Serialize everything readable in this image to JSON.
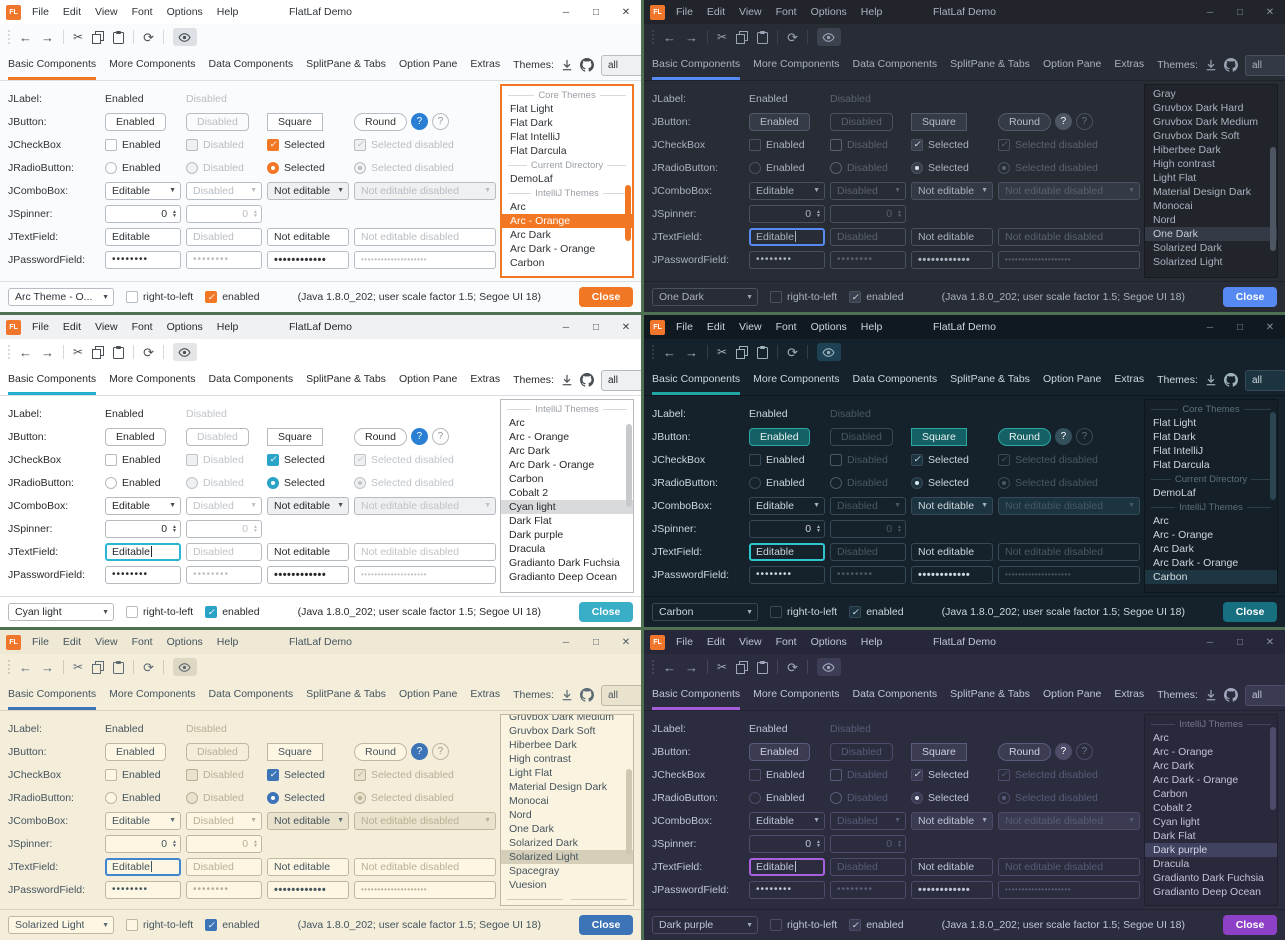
{
  "desktop_color": "#4f7152",
  "shared": {
    "titlebar": {
      "title": "FlatLaf Demo",
      "menus": [
        "File",
        "Edit",
        "View",
        "Font",
        "Options",
        "Help"
      ]
    },
    "toolbar_icons": [
      "back",
      "forward",
      "cut",
      "copy",
      "paste",
      "refresh",
      "show-eye"
    ],
    "tabs": [
      "Basic Components",
      "More Components",
      "Data Components",
      "SplitPane & Tabs",
      "Option Pane",
      "Extras"
    ],
    "themes_label": "Themes:",
    "themes_header_icons": [
      "download",
      "github"
    ],
    "themes_filter_value": "all",
    "form": {
      "rows": [
        {
          "label": "JLabel:",
          "cells": [
            "Enabled",
            "Disabled"
          ]
        },
        {
          "label": "JButton:",
          "cells": [
            "Enabled",
            "Disabled",
            "Square",
            "Round",
            "?",
            "?"
          ]
        },
        {
          "label": "JCheckBox",
          "cells": [
            "Enabled",
            "Disabled",
            "Selected",
            "Selected disabled"
          ]
        },
        {
          "label": "JRadioButton:",
          "cells": [
            "Enabled",
            "Disabled",
            "Selected",
            "Selected disabled"
          ]
        },
        {
          "label": "JComboBox:",
          "cells": [
            "Editable",
            "Disabled",
            "Not editable",
            "Not editable disabled"
          ]
        },
        {
          "label": "JSpinner:",
          "cells": [
            "0",
            "0"
          ]
        },
        {
          "label": "JTextField:",
          "cells": [
            "Editable",
            "Disabled",
            "Not editable",
            "Not editable disabled"
          ]
        },
        {
          "label": "JPasswordField:",
          "cells": [
            "••••••••",
            "••••••••",
            "••••••••••••",
            "••••••••••••••••••••"
          ]
        }
      ]
    },
    "statusbar": {
      "rtl_label": "right-to-left",
      "enabled_label": "enabled",
      "java_info": "(Java 1.8.0_202;  user scale factor 1.5; Segoe UI 18)",
      "close_label": "Close"
    }
  },
  "windows": [
    {
      "id": "arc-orange",
      "theme_name": "Arc - Orange",
      "dark": false,
      "accent": "#f27724",
      "combo_value": "Arc Theme - O...",
      "textfield_focused": false,
      "caret": false,
      "list_focused": true,
      "clip_top": false,
      "theme_list": [
        {
          "type": "sep",
          "label": "Core Themes"
        },
        {
          "type": "item",
          "label": "Flat Light"
        },
        {
          "type": "item",
          "label": "Flat Dark"
        },
        {
          "type": "item",
          "label": "Flat IntelliJ"
        },
        {
          "type": "item",
          "label": "Flat Darcula"
        },
        {
          "type": "sep",
          "label": "Current Directory"
        },
        {
          "type": "item",
          "label": "DemoLaf"
        },
        {
          "type": "sep",
          "label": "IntelliJ Themes"
        },
        {
          "type": "item",
          "label": "Arc"
        },
        {
          "type": "item",
          "label": "Arc - Orange",
          "selected": true
        },
        {
          "type": "item",
          "label": "Arc Dark"
        },
        {
          "type": "item",
          "label": "Arc Dark - Orange"
        },
        {
          "type": "item",
          "label": "Carbon"
        }
      ]
    },
    {
      "id": "one-dark",
      "theme_name": "One Dark",
      "dark": true,
      "accent": "#568af2",
      "combo_value": "One Dark",
      "textfield_focused": true,
      "caret": true,
      "list_focused": false,
      "clip_top": false,
      "theme_list": [
        {
          "type": "item",
          "label": "Gray"
        },
        {
          "type": "item",
          "label": "Gruvbox Dark Hard"
        },
        {
          "type": "item",
          "label": "Gruvbox Dark Medium"
        },
        {
          "type": "item",
          "label": "Gruvbox Dark Soft"
        },
        {
          "type": "item",
          "label": "Hiberbee Dark"
        },
        {
          "type": "item",
          "label": "High contrast"
        },
        {
          "type": "item",
          "label": "Light Flat"
        },
        {
          "type": "item",
          "label": "Material Design Dark"
        },
        {
          "type": "item",
          "label": "Monocai"
        },
        {
          "type": "item",
          "label": "Nord"
        },
        {
          "type": "item",
          "label": "One Dark",
          "selected": true
        },
        {
          "type": "item",
          "label": "Solarized Dark"
        },
        {
          "type": "item",
          "label": "Solarized Light"
        }
      ]
    },
    {
      "id": "cyan-light",
      "theme_name": "Cyan light",
      "dark": false,
      "accent": "#25aecb",
      "combo_value": "Cyan light",
      "textfield_focused": true,
      "caret": true,
      "list_focused": false,
      "clip_top": false,
      "theme_list": [
        {
          "type": "sep",
          "label": "IntelliJ Themes"
        },
        {
          "type": "item",
          "label": "Arc"
        },
        {
          "type": "item",
          "label": "Arc - Orange"
        },
        {
          "type": "item",
          "label": "Arc Dark"
        },
        {
          "type": "item",
          "label": "Arc Dark - Orange"
        },
        {
          "type": "item",
          "label": "Carbon"
        },
        {
          "type": "item",
          "label": "Cobalt 2"
        },
        {
          "type": "item",
          "label": "Cyan light",
          "selected": true
        },
        {
          "type": "item",
          "label": "Dark Flat"
        },
        {
          "type": "item",
          "label": "Dark purple"
        },
        {
          "type": "item",
          "label": "Dracula"
        },
        {
          "type": "item",
          "label": "Gradianto Dark Fuchsia"
        },
        {
          "type": "item",
          "label": "Gradianto Deep Ocean"
        }
      ]
    },
    {
      "id": "carbon",
      "theme_name": "Carbon",
      "dark": true,
      "accent": "#1fa8a3",
      "combo_value": "Carbon",
      "textfield_focused": true,
      "caret": false,
      "list_focused": false,
      "clip_top": false,
      "theme_list": [
        {
          "type": "sep",
          "label": "Core Themes"
        },
        {
          "type": "item",
          "label": "Flat Light"
        },
        {
          "type": "item",
          "label": "Flat Dark"
        },
        {
          "type": "item",
          "label": "Flat IntelliJ"
        },
        {
          "type": "item",
          "label": "Flat Darcula"
        },
        {
          "type": "sep",
          "label": "Current Directory"
        },
        {
          "type": "item",
          "label": "DemoLaf"
        },
        {
          "type": "sep",
          "label": "IntelliJ Themes"
        },
        {
          "type": "item",
          "label": "Arc"
        },
        {
          "type": "item",
          "label": "Arc - Orange"
        },
        {
          "type": "item",
          "label": "Arc Dark"
        },
        {
          "type": "item",
          "label": "Arc Dark - Orange"
        },
        {
          "type": "item",
          "label": "Carbon",
          "selected": true
        }
      ]
    },
    {
      "id": "solarized-light",
      "theme_name": "Solarized Light",
      "dark": false,
      "accent": "#3d74b8",
      "combo_value": "Solarized Light",
      "textfield_focused": true,
      "caret": true,
      "list_focused": false,
      "clip_top": true,
      "theme_list": [
        {
          "type": "item",
          "label": "Gruvbox Dark Medium"
        },
        {
          "type": "item",
          "label": "Gruvbox Dark Soft"
        },
        {
          "type": "item",
          "label": "Hiberbee Dark"
        },
        {
          "type": "item",
          "label": "High contrast"
        },
        {
          "type": "item",
          "label": "Light Flat"
        },
        {
          "type": "item",
          "label": "Material Design Dark"
        },
        {
          "type": "item",
          "label": "Monocai"
        },
        {
          "type": "item",
          "label": "Nord"
        },
        {
          "type": "item",
          "label": "One Dark"
        },
        {
          "type": "item",
          "label": "Solarized Dark"
        },
        {
          "type": "item",
          "label": "Solarized Light",
          "selected": true
        },
        {
          "type": "item",
          "label": "Spacegray"
        },
        {
          "type": "item",
          "label": "Vuesion"
        },
        {
          "type": "sep",
          "label": ""
        }
      ]
    },
    {
      "id": "dark-purple",
      "theme_name": "Dark purple",
      "dark": true,
      "accent": "#a35dd9",
      "combo_value": "Dark purple",
      "textfield_focused": true,
      "caret": true,
      "list_focused": false,
      "clip_top": false,
      "theme_list": [
        {
          "type": "sep",
          "label": "IntelliJ Themes"
        },
        {
          "type": "item",
          "label": "Arc"
        },
        {
          "type": "item",
          "label": "Arc - Orange"
        },
        {
          "type": "item",
          "label": "Arc Dark"
        },
        {
          "type": "item",
          "label": "Arc Dark - Orange"
        },
        {
          "type": "item",
          "label": "Carbon"
        },
        {
          "type": "item",
          "label": "Cobalt 2"
        },
        {
          "type": "item",
          "label": "Cyan light"
        },
        {
          "type": "item",
          "label": "Dark Flat"
        },
        {
          "type": "item",
          "label": "Dark purple",
          "selected": true
        },
        {
          "type": "item",
          "label": "Dracula"
        },
        {
          "type": "item",
          "label": "Gradianto Dark Fuchsia"
        },
        {
          "type": "item",
          "label": "Gradianto Deep Ocean"
        }
      ]
    }
  ]
}
